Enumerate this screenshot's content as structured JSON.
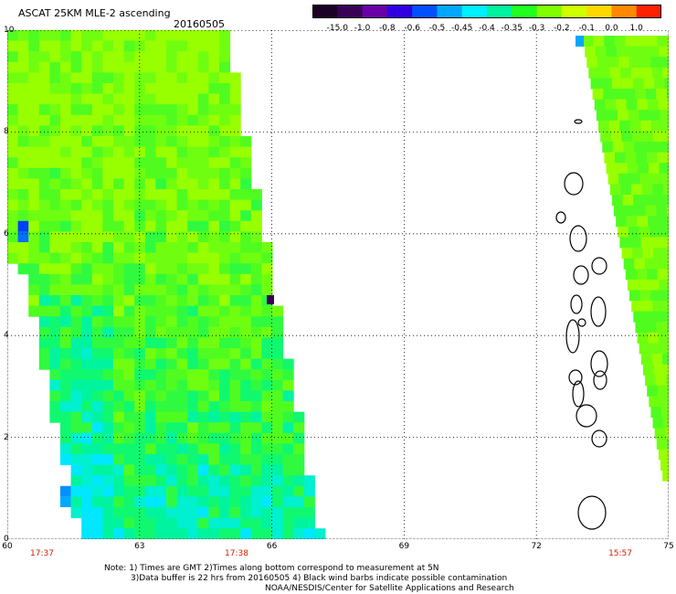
{
  "header": {
    "title": "ASCAT 25KM MLE-2 ascending",
    "date": "20160505"
  },
  "colorbar": {
    "labels": [
      "-15.0",
      "-1.0",
      "-0.8",
      "-0.6",
      "-0.5",
      "-0.45",
      "-0.4",
      "-0.35",
      "-0.3",
      "-0.2",
      "-0.1",
      "0.0",
      "1.0"
    ],
    "colors": [
      "#1a0024",
      "#3a0058",
      "#6a00a8",
      "#3000e0",
      "#0050ff",
      "#00a8ff",
      "#00f0ff",
      "#00f2a0",
      "#20ff20",
      "#80ff00",
      "#d0ff00",
      "#ffd800",
      "#ff8800",
      "#ff2000"
    ]
  },
  "map": {
    "x_axis": {
      "ticks": [
        "60",
        "63",
        "66",
        "69",
        "72",
        "75"
      ],
      "range": [
        60,
        75
      ]
    },
    "y_axis": {
      "ticks": [
        "0",
        "2",
        "4",
        "6",
        "8",
        "10"
      ],
      "range": [
        0,
        10
      ]
    },
    "times": [
      {
        "label": "17:37",
        "lon": 60
      },
      {
        "label": "17:38",
        "lon": 65.2
      },
      {
        "label": "15:57",
        "lon": 74.4
      }
    ]
  },
  "notes": {
    "line1": "Note: 1) Times are GMT 2)Times along bottom correspond to measurement at 5N",
    "line2": "3)Data buffer is 22 hrs from 20160505 4) Black wind barbs indicate possible contamination",
    "line3": "NOAA/NESDIS/Center for Satellite Applications and Research"
  }
}
